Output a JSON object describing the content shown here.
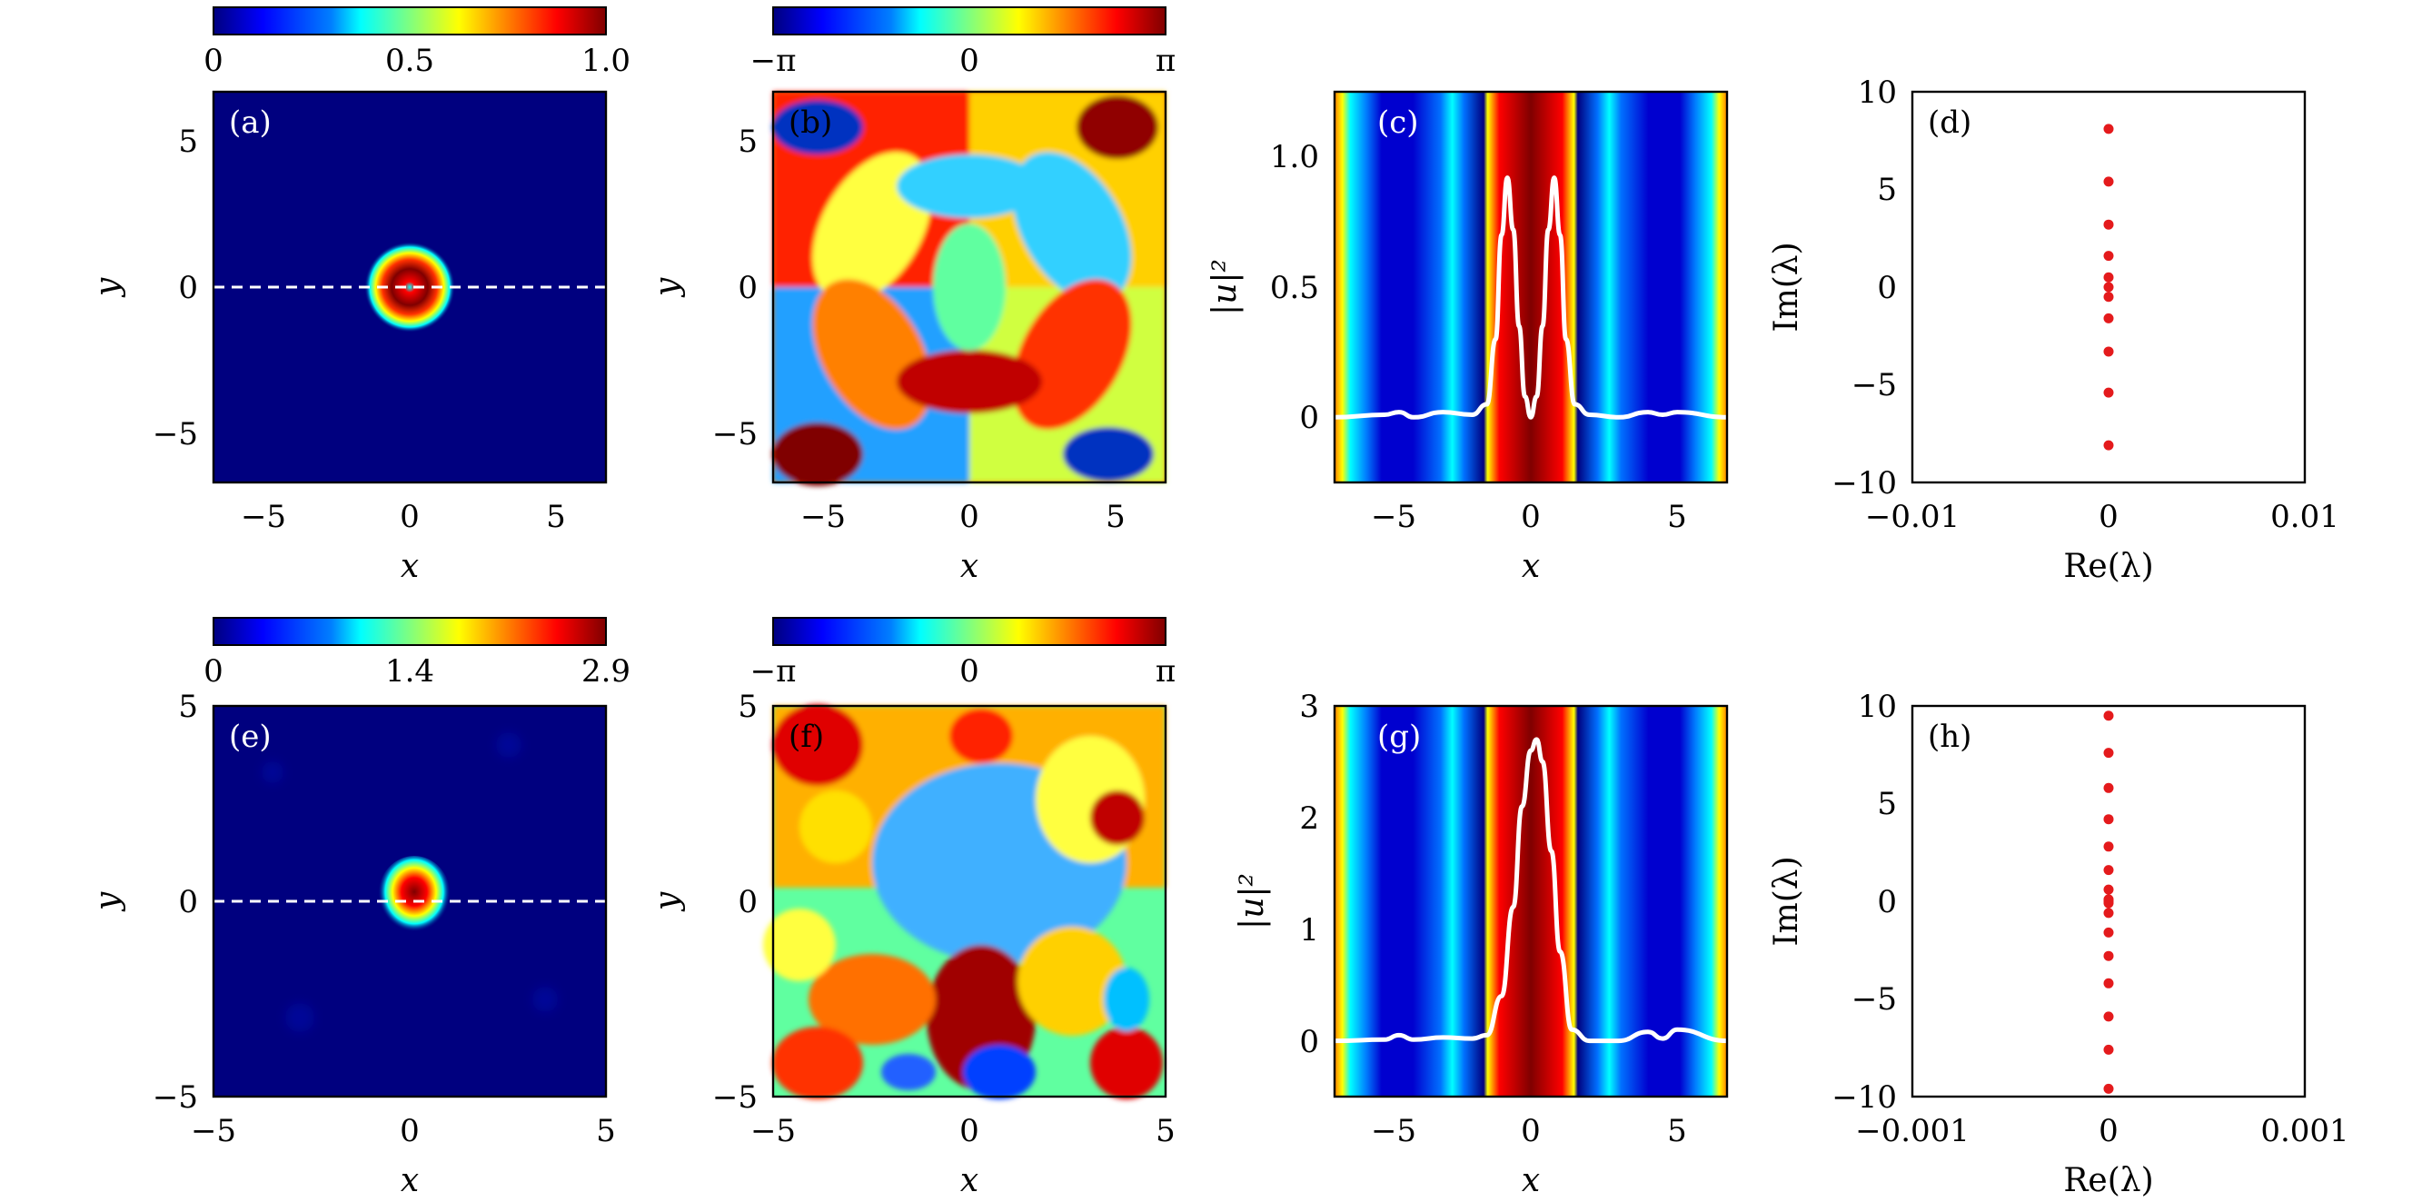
{
  "colors": {
    "jet": [
      "#00007f",
      "#0000ff",
      "#007fff",
      "#00ffff",
      "#7fff7f",
      "#ffff00",
      "#ff7f00",
      "#ff0000",
      "#7f0000"
    ],
    "white_line": "#ffffff",
    "eigen_dot": "#e41a1c",
    "dashed": "#ffffff"
  },
  "rows": [
    {
      "colorbar_amp": {
        "ticks": [
          "0",
          "0.5",
          "1.0"
        ],
        "range": [
          0,
          1.0
        ]
      },
      "colorbar_phase": {
        "ticks": [
          "−π",
          "0",
          "π"
        ]
      },
      "panel_a": {
        "label": "(a)",
        "xlabel": "x",
        "ylabel": "y",
        "xticks": [
          "−5",
          "0",
          "5"
        ],
        "yticks": [
          "5",
          "0",
          "−5"
        ],
        "range": [
          -6.7,
          6.7
        ]
      },
      "panel_b": {
        "label": "(b)",
        "xlabel": "x",
        "ylabel": "y",
        "xticks": [
          "−5",
          "0",
          "5"
        ],
        "yticks": [
          "5",
          "0",
          "−5"
        ],
        "range": [
          -6.7,
          6.7
        ]
      },
      "panel_c": {
        "label": "(c)",
        "xlabel": "x",
        "ylabel": "|u|²",
        "xticks": [
          "−5",
          "0",
          "5"
        ],
        "yticks": [
          "1.0",
          "0.5",
          "0"
        ]
      },
      "panel_d": {
        "label": "(d)",
        "xlabel": "Re(λ)",
        "ylabel": "Im(λ)",
        "xticks": [
          "−0.01",
          "0",
          "0.01"
        ],
        "yticks": [
          "10",
          "5",
          "0",
          "−5",
          "−10"
        ]
      }
    },
    {
      "colorbar_amp": {
        "ticks": [
          "0",
          "1.4",
          "2.9"
        ],
        "range": [
          0,
          2.9
        ]
      },
      "colorbar_phase": {
        "ticks": [
          "−π",
          "0",
          "π"
        ]
      },
      "panel_e": {
        "label": "(e)",
        "xlabel": "x",
        "ylabel": "y",
        "xticks": [
          "−5",
          "0",
          "5"
        ],
        "yticks": [
          "5",
          "0",
          "−5"
        ],
        "range": [
          -5,
          5
        ]
      },
      "panel_f": {
        "label": "(f)",
        "xlabel": "x",
        "ylabel": "y",
        "xticks": [
          "−5",
          "0",
          "5"
        ],
        "yticks": [
          "5",
          "0",
          "−5"
        ],
        "range": [
          -5,
          5
        ]
      },
      "panel_g": {
        "label": "(g)",
        "xlabel": "x",
        "ylabel": "|u|²",
        "xticks": [
          "−5",
          "0",
          "5"
        ],
        "yticks": [
          "3",
          "2",
          "1",
          "0"
        ]
      },
      "panel_h": {
        "label": "(h)",
        "xlabel": "Re(λ)",
        "ylabel": "Im(λ)",
        "xticks": [
          "−0.001",
          "0",
          "0.001"
        ],
        "yticks": [
          "10",
          "5",
          "0",
          "−5",
          "−10"
        ]
      }
    }
  ],
  "chart_data": [
    {
      "type": "heatmap",
      "panel": "(a)",
      "description_quantity": "|u|^2",
      "xlim": [
        -6.7,
        6.7
      ],
      "ylim": [
        -6.7,
        6.7
      ],
      "peak_ring_radius": 0.75,
      "peak_value": 1.0
    },
    {
      "type": "heatmap",
      "panel": "(b)",
      "quantity": "phase",
      "range": [
        "−π",
        "π"
      ]
    },
    {
      "type": "line",
      "panel": "(c)",
      "x": [
        -6.7,
        -5,
        -4.5,
        -4,
        -3,
        -2,
        -1.5,
        -1.2,
        -1.0,
        -0.8,
        -0.6,
        -0.4,
        -0.2,
        0,
        0.2,
        0.4,
        0.6,
        0.8,
        1.0,
        1.2,
        1.5,
        2,
        3,
        4,
        4.5,
        5,
        6.7
      ],
      "y": [
        0,
        0.01,
        0.02,
        0.0,
        0.02,
        0.01,
        0.05,
        0.3,
        0.7,
        0.92,
        0.72,
        0.35,
        0.08,
        0,
        0.08,
        0.35,
        0.72,
        0.92,
        0.7,
        0.3,
        0.05,
        0.01,
        0.0,
        0.02,
        0.01,
        0.02,
        0
      ],
      "xlim": [
        -6.7,
        6.7
      ],
      "ylim": [
        -0.25,
        1.25
      ]
    },
    {
      "type": "scatter",
      "panel": "(d)",
      "x": [
        0,
        0,
        0,
        0,
        0,
        0,
        0,
        0,
        0,
        0,
        0
      ],
      "y": [
        8.1,
        5.4,
        3.2,
        1.6,
        0.5,
        0,
        -0.5,
        -1.6,
        -3.3,
        -5.4,
        -8.1
      ],
      "xlim": [
        -0.01,
        0.01
      ],
      "ylim": [
        -10,
        10
      ]
    },
    {
      "type": "heatmap",
      "panel": "(e)",
      "quantity": "|u|^2",
      "xlim": [
        -5,
        5
      ],
      "ylim": [
        -5,
        5
      ],
      "peak_value": 2.9
    },
    {
      "type": "heatmap",
      "panel": "(f)",
      "quantity": "phase",
      "range": [
        "−π",
        "π"
      ]
    },
    {
      "type": "line",
      "panel": "(g)",
      "x": [
        -6.7,
        -5,
        -4.5,
        -4,
        -3,
        -2,
        -1.5,
        -1.0,
        -0.6,
        -0.3,
        0,
        0.2,
        0.4,
        0.7,
        1.0,
        1.4,
        2,
        3,
        4,
        4.5,
        5,
        6.7
      ],
      "y": [
        0,
        0.01,
        0.05,
        0.01,
        0.03,
        0.02,
        0.05,
        0.4,
        1.2,
        2.1,
        2.6,
        2.7,
        2.5,
        1.7,
        0.8,
        0.1,
        0.0,
        0.0,
        0.08,
        0.02,
        0.1,
        0
      ],
      "xlim": [
        -6.7,
        6.7
      ],
      "ylim": [
        -0.5,
        3
      ]
    },
    {
      "type": "scatter",
      "panel": "(h)",
      "x": [
        0,
        0,
        0,
        0,
        0,
        0,
        0,
        0,
        0,
        0,
        0,
        0,
        0,
        0,
        0,
        0,
        0
      ],
      "y": [
        9.5,
        7.6,
        5.8,
        4.2,
        2.8,
        1.6,
        0.6,
        0.1,
        -0.1,
        -0.6,
        -1.6,
        -2.8,
        -4.2,
        -5.9,
        -7.6,
        -9.6,
        0
      ],
      "xlim": [
        -0.001,
        0.001
      ],
      "ylim": [
        -10,
        10
      ]
    }
  ]
}
